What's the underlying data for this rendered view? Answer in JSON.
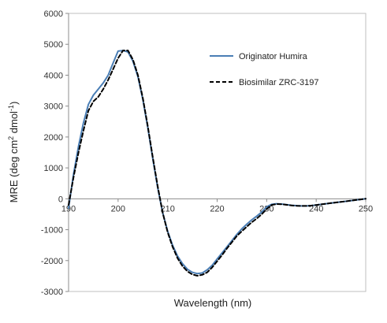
{
  "chart_data": {
    "type": "line",
    "xlabel": "Wavelength (nm)",
    "ylabel_parts": {
      "pre": "MRE (deg cm",
      "sup1": "2",
      "mid": " dmol",
      "sup2": "-1",
      "post": ")"
    },
    "xlim": [
      190,
      250
    ],
    "ylim": [
      -3000,
      6000
    ],
    "x_ticks": [
      "190",
      "200",
      "210",
      "220",
      "230",
      "240",
      "250"
    ],
    "y_ticks": [
      "6000",
      "5000",
      "4000",
      "3000",
      "2000",
      "1000",
      "0",
      "-1000",
      "-2000",
      "-3000"
    ],
    "legend_position": "top-right",
    "series": [
      {
        "name": "Originator Humira",
        "color": "#4a7eb5",
        "style": "solid",
        "x": [
          190,
          191,
          192,
          193,
          194,
          195,
          196,
          197,
          198,
          199,
          200,
          201,
          202,
          203,
          204,
          205,
          206,
          207,
          208,
          209,
          210,
          211,
          212,
          213,
          214,
          215,
          216,
          217,
          218,
          219,
          220,
          221,
          222,
          223,
          224,
          225,
          226,
          227,
          228,
          229,
          230,
          231,
          232,
          233,
          234,
          235,
          236,
          237,
          238,
          239,
          240,
          241,
          242,
          243,
          244,
          245,
          246,
          247,
          248,
          249,
          250
        ],
        "y": [
          -300,
          800,
          1700,
          2450,
          3050,
          3350,
          3550,
          3750,
          4000,
          4400,
          4780,
          4800,
          4750,
          4450,
          3950,
          3200,
          2300,
          1300,
          350,
          -450,
          -1050,
          -1500,
          -1850,
          -2100,
          -2280,
          -2380,
          -2420,
          -2400,
          -2300,
          -2150,
          -1950,
          -1750,
          -1550,
          -1350,
          -1150,
          -970,
          -820,
          -680,
          -560,
          -430,
          -260,
          -180,
          -160,
          -170,
          -190,
          -210,
          -220,
          -230,
          -230,
          -220,
          -200,
          -180,
          -160,
          -140,
          -120,
          -100,
          -80,
          -60,
          -40,
          -20,
          0
        ]
      },
      {
        "name": "Biosimilar ZRC-3197",
        "color": "#000000",
        "style": "dashed",
        "x": [
          190,
          191,
          192,
          193,
          194,
          195,
          196,
          197,
          198,
          199,
          200,
          201,
          202,
          203,
          204,
          205,
          206,
          207,
          208,
          209,
          210,
          211,
          212,
          213,
          214,
          215,
          216,
          217,
          218,
          219,
          220,
          221,
          222,
          223,
          224,
          225,
          226,
          227,
          228,
          229,
          230,
          231,
          232,
          233,
          234,
          235,
          236,
          237,
          238,
          239,
          240,
          241,
          242,
          243,
          244,
          245,
          246,
          247,
          248,
          249,
          250
        ],
        "y": [
          -200,
          700,
          1500,
          2200,
          2850,
          3150,
          3300,
          3550,
          3850,
          4200,
          4550,
          4800,
          4800,
          4500,
          4000,
          3250,
          2350,
          1350,
          400,
          -450,
          -1080,
          -1550,
          -1920,
          -2180,
          -2350,
          -2450,
          -2490,
          -2460,
          -2380,
          -2220,
          -2020,
          -1820,
          -1600,
          -1400,
          -1200,
          -1050,
          -900,
          -760,
          -640,
          -500,
          -330,
          -200,
          -170,
          -175,
          -195,
          -215,
          -225,
          -230,
          -230,
          -220,
          -200,
          -180,
          -160,
          -140,
          -120,
          -100,
          -80,
          -60,
          -40,
          -20,
          0
        ]
      }
    ]
  }
}
